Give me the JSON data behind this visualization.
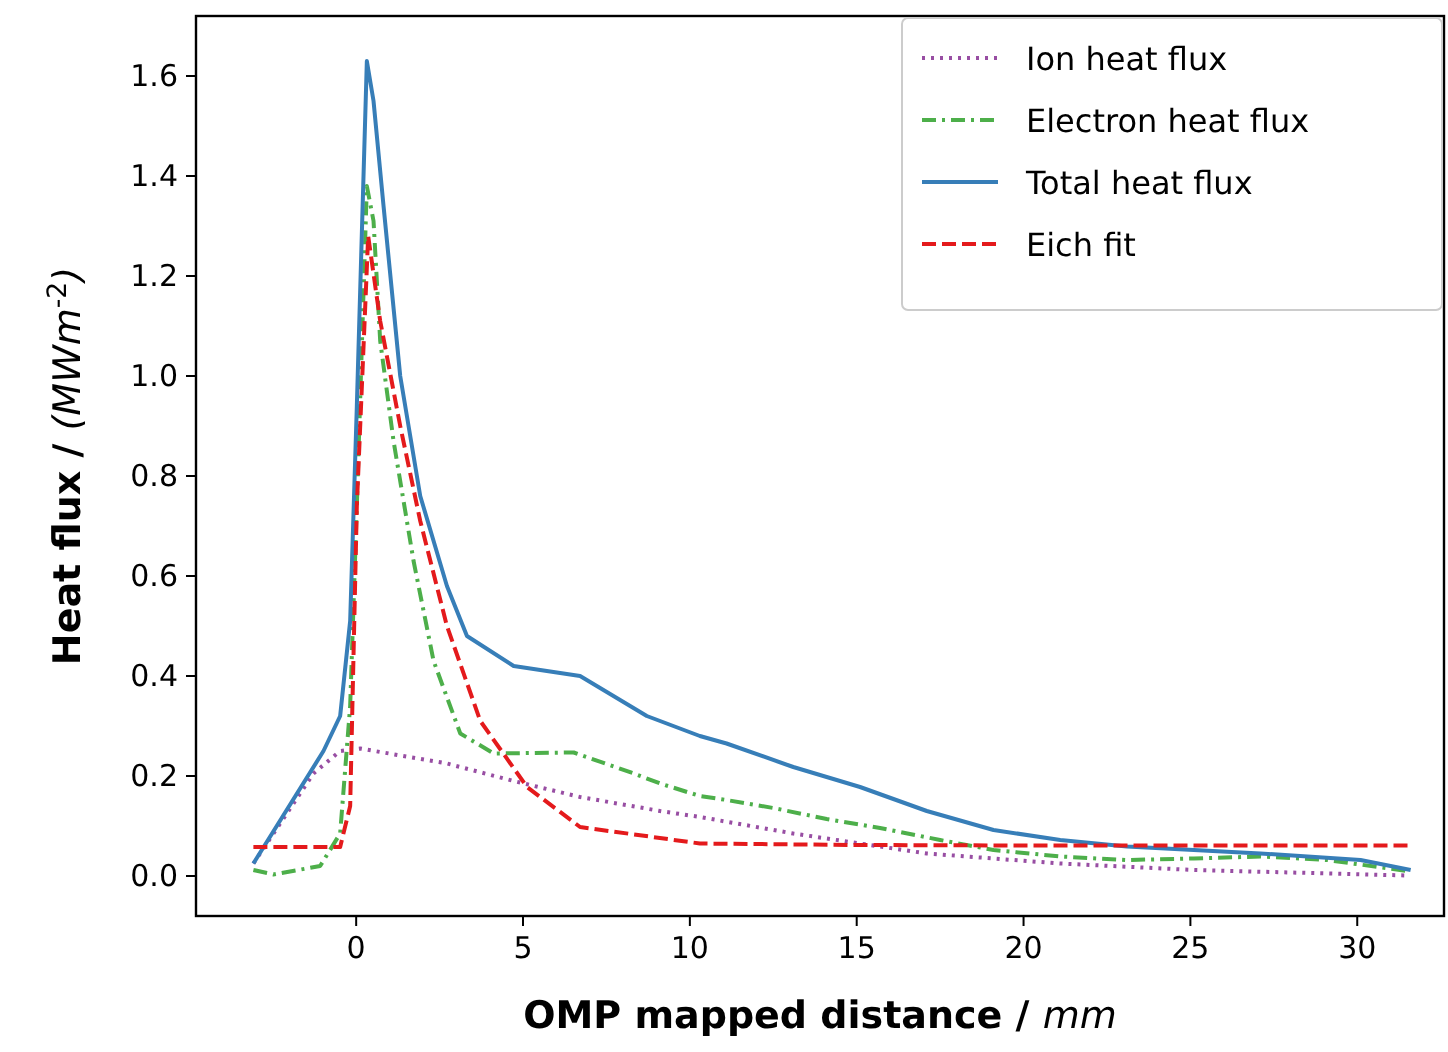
{
  "chart_data": {
    "type": "line",
    "xlabel": "OMP mapped distance / mm",
    "ylabel": "Heat flux / (MWm$^{-2}$)",
    "xlim": [
      -4.8,
      32.6
    ],
    "ylim": [
      -0.08,
      1.72
    ],
    "xticks": [
      0,
      5,
      10,
      15,
      20,
      25,
      30
    ],
    "yticks": [
      {
        "value": 0,
        "label": "0.0"
      },
      {
        "value": 0.2,
        "label": "0.2"
      },
      {
        "value": 0.4,
        "label": "0.4"
      },
      {
        "value": 0.6,
        "label": "0.6"
      },
      {
        "value": 0.8,
        "label": "0.8"
      },
      {
        "value": 1,
        "label": "1.0"
      },
      {
        "value": 1.2,
        "label": "1.2"
      },
      {
        "value": 1.4,
        "label": "1.4"
      },
      {
        "value": 1.6,
        "label": "1.6"
      }
    ],
    "grid": false,
    "legend": "top right",
    "series": [
      {
        "name": "Ion heat flux",
        "color": "#984ea3",
        "line_style": "dotted",
        "x": [
          -3.08,
          -1.28,
          -0.48,
          0.12,
          2.72,
          4.72,
          6.71,
          9.11,
          10.3,
          13.1,
          17.1,
          21.1,
          25.1,
          31.5
        ],
        "values": [
          0.025,
          0.205,
          0.25,
          0.255,
          0.225,
          0.19,
          0.158,
          0.13,
          0.118,
          0.085,
          0.045,
          0.025,
          0.012,
          0.001
        ]
      },
      {
        "name": "Electron heat flux",
        "color": "#4daf4a",
        "line_style": "dashdot",
        "x": [
          -3.08,
          -2.48,
          -1.08,
          -0.48,
          -0.18,
          0.02,
          0.32,
          0.52,
          0.72,
          1.12,
          1.72,
          2.32,
          3.12,
          4.12,
          6.52,
          8.32,
          9.11,
          10.3,
          11.1,
          12.5,
          14.1,
          15.7,
          17.5,
          19.1,
          21.1,
          23.1,
          25.1,
          27.1,
          29.1,
          31.6
        ],
        "values": [
          0.012,
          0.003,
          0.02,
          0.085,
          0.34,
          0.74,
          1.38,
          1.31,
          1.07,
          0.87,
          0.63,
          0.43,
          0.285,
          0.245,
          0.247,
          0.205,
          0.185,
          0.16,
          0.152,
          0.136,
          0.114,
          0.096,
          0.072,
          0.052,
          0.039,
          0.032,
          0.035,
          0.039,
          0.032,
          0.009
        ]
      },
      {
        "name": "Total heat flux",
        "color": "#377eb8",
        "line_style": "solid",
        "x": [
          -3.08,
          -0.98,
          -0.48,
          -0.18,
          0.02,
          0.32,
          0.52,
          0.82,
          1.32,
          1.92,
          2.72,
          3.32,
          4.72,
          6.71,
          8.71,
          10.3,
          11.1,
          13.1,
          15.1,
          17.1,
          19.1,
          21.1,
          23.1,
          25.1,
          27.1,
          30.1,
          31.6
        ],
        "values": [
          0.025,
          0.25,
          0.32,
          0.51,
          0.94,
          1.63,
          1.55,
          1.34,
          1.0,
          0.76,
          0.58,
          0.48,
          0.42,
          0.4,
          0.32,
          0.28,
          0.265,
          0.218,
          0.178,
          0.13,
          0.092,
          0.072,
          0.059,
          0.052,
          0.045,
          0.032,
          0.012
        ]
      },
      {
        "name": "Eich fit",
        "color": "#e41a1c",
        "line_style": "dashed",
        "x": [
          -3.08,
          -0.48,
          -0.18,
          0.02,
          0.36,
          0.72,
          1.32,
          1.92,
          2.72,
          3.72,
          5.12,
          6.71,
          10.3,
          15,
          20,
          25,
          31.6
        ],
        "values": [
          0.058,
          0.058,
          0.14,
          0.74,
          1.28,
          1.11,
          0.9,
          0.71,
          0.5,
          0.31,
          0.178,
          0.098,
          0.065,
          0.062,
          0.061,
          0.061,
          0.061
        ]
      }
    ]
  }
}
